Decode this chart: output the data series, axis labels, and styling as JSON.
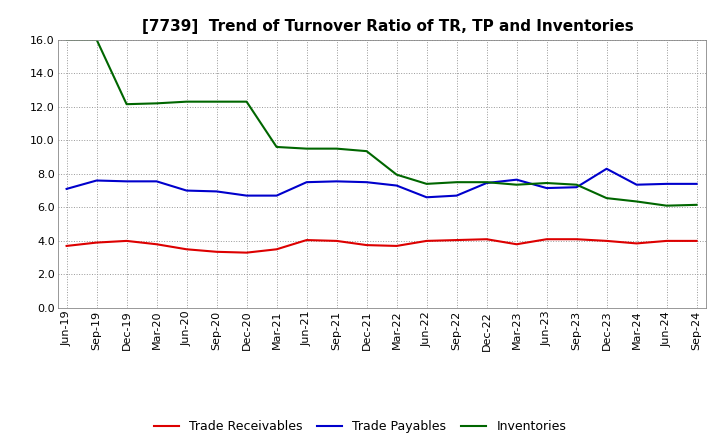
{
  "title": "[7739]  Trend of Turnover Ratio of TR, TP and Inventories",
  "x_labels": [
    "Jun-19",
    "Sep-19",
    "Dec-19",
    "Mar-20",
    "Jun-20",
    "Sep-20",
    "Dec-20",
    "Mar-21",
    "Jun-21",
    "Sep-21",
    "Dec-21",
    "Mar-22",
    "Jun-22",
    "Sep-22",
    "Dec-22",
    "Mar-23",
    "Jun-23",
    "Sep-23",
    "Dec-23",
    "Mar-24",
    "Jun-24",
    "Sep-24"
  ],
  "trade_receivables": [
    3.7,
    3.9,
    4.0,
    3.8,
    3.5,
    3.35,
    3.3,
    3.5,
    4.05,
    4.0,
    3.75,
    3.7,
    4.0,
    4.05,
    4.1,
    3.8,
    4.1,
    4.1,
    4.0,
    3.85,
    4.0,
    4.0
  ],
  "trade_payables": [
    7.1,
    7.6,
    7.55,
    7.55,
    7.0,
    6.95,
    6.7,
    6.7,
    7.5,
    7.55,
    7.5,
    7.3,
    6.6,
    6.7,
    7.45,
    7.65,
    7.15,
    7.2,
    8.3,
    7.35,
    7.4,
    7.4
  ],
  "inventories": [
    16.0,
    16.0,
    12.15,
    12.2,
    12.3,
    12.3,
    12.3,
    9.6,
    9.5,
    9.5,
    9.35,
    7.95,
    7.4,
    7.5,
    7.5,
    7.35,
    7.45,
    7.35,
    6.55,
    6.35,
    6.1,
    6.15
  ],
  "ylim": [
    0.0,
    16.0
  ],
  "yticks": [
    0.0,
    2.0,
    4.0,
    6.0,
    8.0,
    10.0,
    12.0,
    14.0,
    16.0
  ],
  "line_color_tr": "#dd0000",
  "line_color_tp": "#0000cc",
  "line_color_inv": "#006600",
  "legend_labels": [
    "Trade Receivables",
    "Trade Payables",
    "Inventories"
  ],
  "background_color": "#ffffff",
  "grid_color": "#999999",
  "title_fontsize": 11,
  "tick_fontsize": 8,
  "legend_fontsize": 9
}
